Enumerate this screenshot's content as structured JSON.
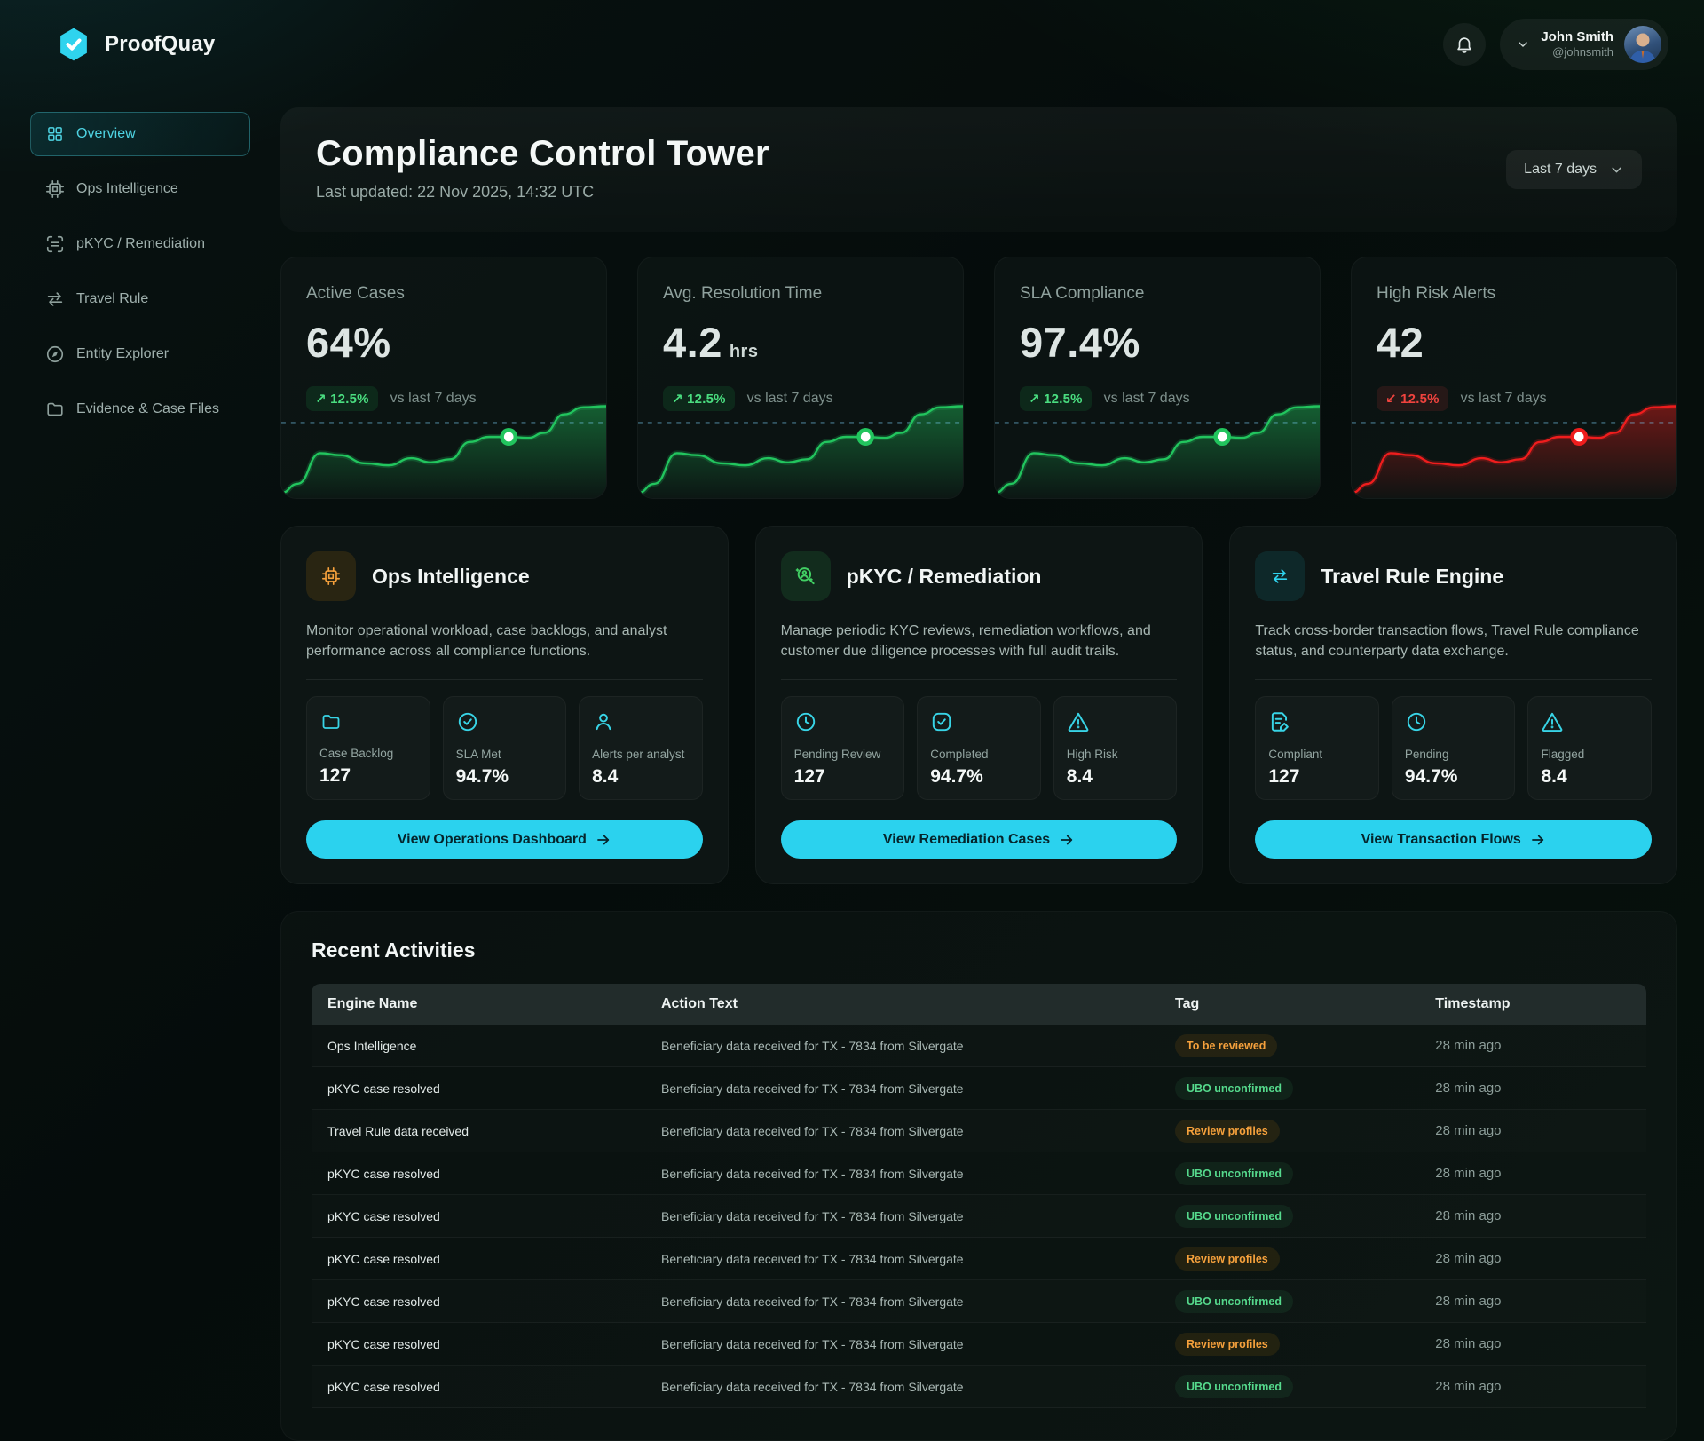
{
  "brand": {
    "name": "ProofQuay",
    "logo_icon": "hexagon-check-icon"
  },
  "header": {
    "notifications_icon": "bell-icon",
    "user_name": "John Smith",
    "user_handle": "@johnsmith"
  },
  "sidebar": {
    "items": [
      {
        "id": "overview",
        "label": "Overview",
        "icon": "grid-icon",
        "active": true
      },
      {
        "id": "ops-intelligence",
        "label": "Ops Intelligence",
        "icon": "cpu-icon",
        "active": false
      },
      {
        "id": "pkyc-remediation",
        "label": "pKYC / Remediation",
        "icon": "scan-icon",
        "active": false
      },
      {
        "id": "travel-rule",
        "label": "Travel Rule",
        "icon": "transfer-icon",
        "active": false
      },
      {
        "id": "entity-explorer",
        "label": "Entity Explorer",
        "icon": "compass-icon",
        "active": false
      },
      {
        "id": "evidence-case-files",
        "label": "Evidence & Case Files",
        "icon": "folder-icon",
        "active": false
      }
    ]
  },
  "page": {
    "title": "Compliance Control Tower",
    "subtitle": "Last updated: 22 Nov 2025, 14:32 UTC",
    "range_label": "Last 7 days"
  },
  "kpis": [
    {
      "label": "Active Cases",
      "value": "64%",
      "unit": "",
      "delta": "12.5%",
      "delta_dir": "up",
      "delta_arrow": "↗",
      "compare": "vs last 7 days",
      "trend": "green"
    },
    {
      "label": "Avg. Resolution Time",
      "value": "4.2",
      "unit": "hrs",
      "delta": "12.5%",
      "delta_dir": "up",
      "delta_arrow": "↗",
      "compare": "vs last 7 days",
      "trend": "green"
    },
    {
      "label": "SLA Compliance",
      "value": "97.4%",
      "unit": "",
      "delta": "12.5%",
      "delta_dir": "up",
      "delta_arrow": "↗",
      "compare": "vs last 7 days",
      "trend": "green"
    },
    {
      "label": "High Risk Alerts",
      "value": "42",
      "unit": "",
      "delta": "12.5%",
      "delta_dir": "down",
      "delta_arrow": "↙",
      "compare": "vs last 7 days",
      "trend": "red"
    }
  ],
  "sparkline": {
    "points": [
      [
        0,
        0.95
      ],
      [
        0.05,
        0.86
      ],
      [
        0.12,
        0.56
      ],
      [
        0.18,
        0.58
      ],
      [
        0.26,
        0.66
      ],
      [
        0.33,
        0.68
      ],
      [
        0.4,
        0.61
      ],
      [
        0.46,
        0.65
      ],
      [
        0.52,
        0.62
      ],
      [
        0.58,
        0.45
      ],
      [
        0.64,
        0.4
      ],
      [
        0.7,
        0.4
      ],
      [
        0.76,
        0.41
      ],
      [
        0.81,
        0.36
      ],
      [
        0.87,
        0.18
      ],
      [
        0.93,
        0.11
      ],
      [
        1,
        0.1
      ]
    ],
    "marker": [
      0.7,
      0.4
    ],
    "baseline_y": 0.26
  },
  "modules": [
    {
      "title": "Ops Intelligence",
      "icon": "cpu-icon",
      "accent": "orange",
      "description": "Monitor operational workload, case backlogs, and analyst performance across all compliance functions.",
      "stats": [
        {
          "icon": "folder-icon",
          "label": "Case Backlog",
          "value": "127"
        },
        {
          "icon": "check-circle-icon",
          "label": "SLA Met",
          "value": "94.7%"
        },
        {
          "icon": "user-icon",
          "label": "Alerts per analyst",
          "value": "8.4"
        }
      ],
      "cta": "View Operations Dashboard",
      "cta_id": "view-operations-dashboard-button"
    },
    {
      "title": "pKYC / Remediation",
      "icon": "kyc-search-icon",
      "accent": "green",
      "description": "Manage periodic KYC reviews, remediation workflows, and customer due diligence processes with full audit trails.",
      "stats": [
        {
          "icon": "clock-icon",
          "label": "Pending Review",
          "value": "127"
        },
        {
          "icon": "check-square-icon",
          "label": "Completed",
          "value": "94.7%"
        },
        {
          "icon": "warning-icon",
          "label": "High Risk",
          "value": "8.4"
        }
      ],
      "cta": "View Remediation Cases",
      "cta_id": "view-remediation-cases-button"
    },
    {
      "title": "Travel Rule Engine",
      "icon": "transfer-icon",
      "accent": "cyan",
      "description": "Track cross-border transaction flows, Travel Rule compliance status, and counterparty data exchange.",
      "stats": [
        {
          "icon": "file-pen-icon",
          "label": "Compliant",
          "value": "127"
        },
        {
          "icon": "clock-icon",
          "label": "Pending",
          "value": "94.7%"
        },
        {
          "icon": "warning-icon",
          "label": "Flagged",
          "value": "8.4"
        }
      ],
      "cta": "View Transaction Flows",
      "cta_id": "view-transaction-flows-button"
    }
  ],
  "activities": {
    "title": "Recent Activities",
    "columns": [
      "Engine Name",
      "Action Text",
      "Tag",
      "Timestamp"
    ],
    "rows": [
      {
        "engine": "Ops Intelligence",
        "action": "Beneficiary data received for TX - 7834 from Silvergate",
        "tag": "To be reviewed",
        "tag_color": "orange",
        "time": "28 min ago"
      },
      {
        "engine": "pKYC case resolved",
        "action": "Beneficiary data received for TX - 7834 from Silvergate",
        "tag": "UBO unconfirmed",
        "tag_color": "green",
        "time": "28 min ago"
      },
      {
        "engine": "Travel Rule data received",
        "action": "Beneficiary data received for TX - 7834 from Silvergate",
        "tag": "Review profiles",
        "tag_color": "orange",
        "time": "28 min ago"
      },
      {
        "engine": "pKYC case resolved",
        "action": "Beneficiary data received for TX - 7834 from Silvergate",
        "tag": "UBO unconfirmed",
        "tag_color": "green",
        "time": "28 min ago"
      },
      {
        "engine": "pKYC case resolved",
        "action": "Beneficiary data received for TX - 7834 from Silvergate",
        "tag": "UBO unconfirmed",
        "tag_color": "green",
        "time": "28 min ago"
      },
      {
        "engine": "pKYC case resolved",
        "action": "Beneficiary data received for TX - 7834 from Silvergate",
        "tag": "Review profiles",
        "tag_color": "orange",
        "time": "28 min ago"
      },
      {
        "engine": "pKYC case resolved",
        "action": "Beneficiary data received for TX - 7834 from Silvergate",
        "tag": "UBO unconfirmed",
        "tag_color": "green",
        "time": "28 min ago"
      },
      {
        "engine": "pKYC case resolved",
        "action": "Beneficiary data received for TX - 7834 from Silvergate",
        "tag": "Review profiles",
        "tag_color": "orange",
        "time": "28 min ago"
      },
      {
        "engine": "pKYC case resolved",
        "action": "Beneficiary data received for TX - 7834 from Silvergate",
        "tag": "UBO unconfirmed",
        "tag_color": "green",
        "time": "28 min ago"
      }
    ]
  },
  "colors": {
    "accent_cyan": "#2bd2ee",
    "green": "#22c55e",
    "red": "#ef1d1d",
    "orange": "#f59e0b",
    "baseline_dash": "rgba(125,211,252,0.45)"
  }
}
